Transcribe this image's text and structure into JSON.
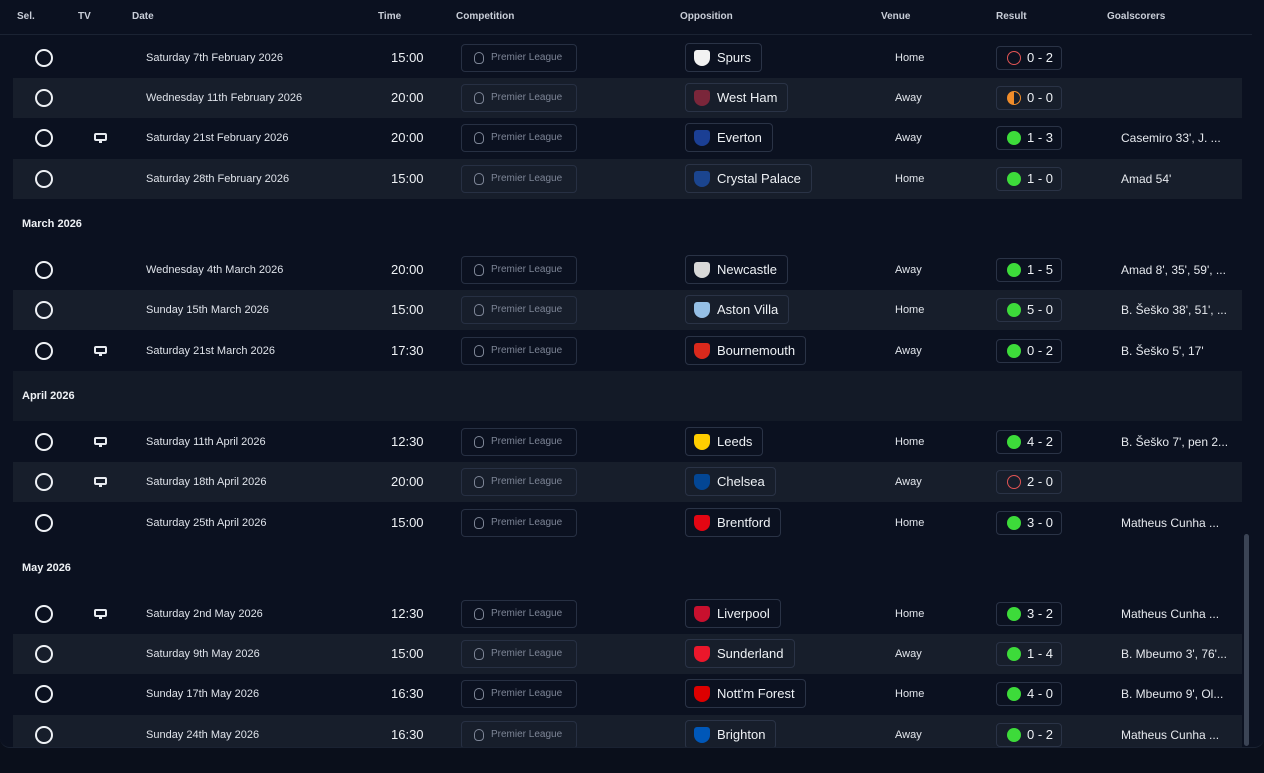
{
  "columns": {
    "sel": "Sel.",
    "tv": "TV",
    "date": "Date",
    "time": "Time",
    "competition": "Competition",
    "opposition": "Opposition",
    "venue": "Venue",
    "result": "Result",
    "goalscorers": "Goalscorers"
  },
  "months": {
    "march": "March 2026",
    "april": "April 2026",
    "may": "May 2026"
  },
  "fixtures": [
    {
      "date": "Saturday 7th February 2026",
      "time": "15:00",
      "competition": "Premier League",
      "opposition": "Spurs",
      "crest_color": "#f2f2f2",
      "venue": "Home",
      "result": "0 - 2",
      "outcome": "loss",
      "scorers": "",
      "tv": false
    },
    {
      "date": "Wednesday 11th February 2026",
      "time": "20:00",
      "competition": "Premier League",
      "opposition": "West Ham",
      "crest_color": "#7a263a",
      "venue": "Away",
      "result": "0 - 0",
      "outcome": "draw",
      "scorers": "",
      "tv": false
    },
    {
      "date": "Saturday 21st February 2026",
      "time": "20:00",
      "competition": "Premier League",
      "opposition": "Everton",
      "crest_color": "#1b3f94",
      "venue": "Away",
      "result": "1 - 3",
      "outcome": "win",
      "scorers": "Casemiro 33', J. ...",
      "tv": true
    },
    {
      "date": "Saturday 28th February 2026",
      "time": "15:00",
      "competition": "Premier League",
      "opposition": "Crystal Palace",
      "crest_color": "#1b458f",
      "venue": "Home",
      "result": "1 - 0",
      "outcome": "win",
      "scorers": "Amad 54'",
      "tv": false
    },
    {
      "date": "Wednesday 4th March 2026",
      "time": "20:00",
      "competition": "Premier League",
      "opposition": "Newcastle",
      "crest_color": "#d8d8d8",
      "venue": "Away",
      "result": "1 - 5",
      "outcome": "win",
      "scorers": "Amad 8', 35', 59', ...",
      "tv": false
    },
    {
      "date": "Sunday 15th March 2026",
      "time": "15:00",
      "competition": "Premier League",
      "opposition": "Aston Villa",
      "crest_color": "#95bfe5",
      "venue": "Home",
      "result": "5 - 0",
      "outcome": "win",
      "scorers": "B. Šeško 38', 51', ...",
      "tv": false
    },
    {
      "date": "Saturday 21st March 2026",
      "time": "17:30",
      "competition": "Premier League",
      "opposition": "Bournemouth",
      "crest_color": "#da291c",
      "venue": "Away",
      "result": "0 - 2",
      "outcome": "win",
      "scorers": "B. Šeško 5', 17'",
      "tv": true
    },
    {
      "date": "Saturday 11th April 2026",
      "time": "12:30",
      "competition": "Premier League",
      "opposition": "Leeds",
      "crest_color": "#ffcd00",
      "venue": "Home",
      "result": "4 - 2",
      "outcome": "win",
      "scorers": "B. Šeško 7', pen 2...",
      "tv": true
    },
    {
      "date": "Saturday 18th April 2026",
      "time": "20:00",
      "competition": "Premier League",
      "opposition": "Chelsea",
      "crest_color": "#034694",
      "venue": "Away",
      "result": "2 - 0",
      "outcome": "loss",
      "scorers": "",
      "tv": true
    },
    {
      "date": "Saturday 25th April 2026",
      "time": "15:00",
      "competition": "Premier League",
      "opposition": "Brentford",
      "crest_color": "#e30613",
      "venue": "Home",
      "result": "3 - 0",
      "outcome": "win",
      "scorers": "Matheus Cunha ...",
      "tv": false
    },
    {
      "date": "Saturday 2nd May 2026",
      "time": "12:30",
      "competition": "Premier League",
      "opposition": "Liverpool",
      "crest_color": "#c8102e",
      "venue": "Home",
      "result": "3 - 2",
      "outcome": "win",
      "scorers": "Matheus Cunha ...",
      "tv": true
    },
    {
      "date": "Saturday 9th May 2026",
      "time": "15:00",
      "competition": "Premier League",
      "opposition": "Sunderland",
      "crest_color": "#eb172b",
      "venue": "Away",
      "result": "1 - 4",
      "outcome": "win",
      "scorers": "B. Mbeumo 3', 76'...",
      "tv": false
    },
    {
      "date": "Sunday 17th May 2026",
      "time": "16:30",
      "competition": "Premier League",
      "opposition": "Nott'm Forest",
      "crest_color": "#dd0000",
      "venue": "Home",
      "result": "4 - 0",
      "outcome": "win",
      "scorers": "B. Mbeumo 9', Ol...",
      "tv": false
    },
    {
      "date": "Sunday 24th May 2026",
      "time": "16:30",
      "competition": "Premier League",
      "opposition": "Brighton",
      "crest_color": "#0057b8",
      "venue": "Away",
      "result": "0 - 2",
      "outcome": "win",
      "scorers": "Matheus Cunha ...",
      "tv": false
    }
  ]
}
